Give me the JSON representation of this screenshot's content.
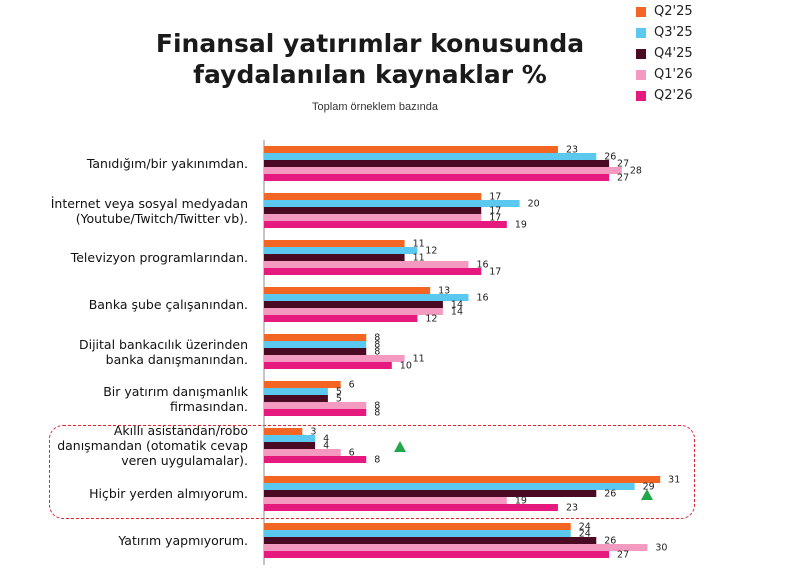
{
  "chart_data": {
    "type": "bar",
    "orientation": "horizontal",
    "title": [
      "Finansal yatırımlar konusunda",
      "faydalanılan kaynaklar %"
    ],
    "subtitle": "Toplam örneklem bazında",
    "categories": [
      [
        "Tanıdığım/bir yakınımdan."
      ],
      [
        "İnternet veya sosyal medyadan",
        "(Youtube/Twitch/Twitter vb)."
      ],
      [
        "Televizyon programlarından."
      ],
      [
        "Banka şube çalışanından."
      ],
      [
        "Dijital bankacılık üzerinden",
        "banka danışmanından."
      ],
      [
        "Bir yatırım danışmanlık",
        "firmasından."
      ],
      [
        "Akıllı asistandan/robo",
        "danışmandan (otomatik cevap",
        "veren uygulamalar)."
      ],
      [
        "Hiçbir yerden almıyorum."
      ],
      [
        "Yatırım yapmıyorum."
      ]
    ],
    "series": [
      {
        "name": "Q2'25",
        "color": "#f26522",
        "values": [
          23,
          17,
          11,
          13,
          8,
          6,
          3,
          31,
          24
        ]
      },
      {
        "name": "Q3'25",
        "color": "#5bc8f0",
        "values": [
          26,
          20,
          12,
          16,
          8,
          5,
          4,
          29,
          24
        ]
      },
      {
        "name": "Q4'25",
        "color": "#4a0a24",
        "values": [
          27,
          17,
          11,
          14,
          8,
          5,
          4,
          26,
          26
        ]
      },
      {
        "name": "Q1'26",
        "color": "#f49ac1",
        "values": [
          28,
          17,
          16,
          14,
          11,
          8,
          6,
          19,
          30
        ]
      },
      {
        "name": "Q2'26",
        "color": "#e6197e",
        "values": [
          27,
          19,
          17,
          12,
          10,
          8,
          8,
          23,
          27
        ]
      }
    ],
    "xlim": [
      0,
      31
    ],
    "legend": "top-right",
    "grid": false,
    "highlight": {
      "categories": [
        6,
        7
      ],
      "style": "dashed-red-box"
    },
    "annotations": [
      {
        "type": "up-triangle",
        "category": 6,
        "color": "#22a84a"
      },
      {
        "type": "up-triangle",
        "category": 7,
        "color": "#22a84a"
      }
    ]
  }
}
